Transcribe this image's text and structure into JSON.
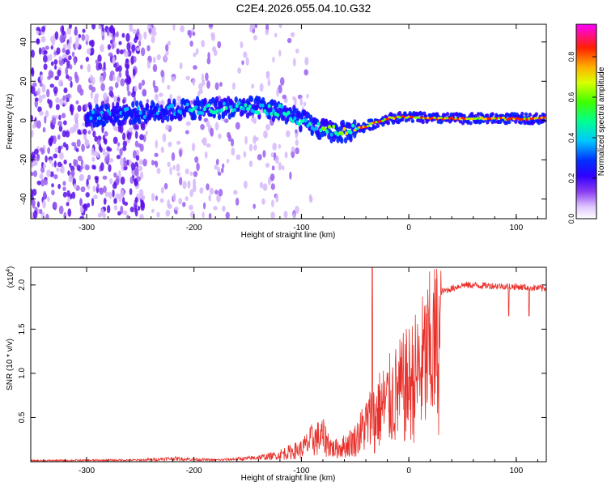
{
  "title": "C2E4.2026.055.04.10.G32",
  "colors": {
    "snr_line": "#e8302a",
    "axes": "#000000",
    "sparse_scatter": "#8a3cf0"
  },
  "chart_data": [
    {
      "type": "heatmap",
      "name": "spectrogram",
      "xlabel": "Height of straight line (km)",
      "ylabel": "Frequency (Hz)",
      "xlim": [
        -352,
        128
      ],
      "ylim": [
        -50,
        49
      ],
      "xticks": [
        -300,
        -200,
        -100,
        0,
        100
      ],
      "yticks": [
        -40,
        -20,
        0,
        20,
        40
      ],
      "colorbar": {
        "label": "Normalized spectral amplitude",
        "range": [
          0,
          0.96
        ],
        "ticks": [
          0.0,
          0.2,
          0.4,
          0.6,
          0.8
        ],
        "colormap": [
          "#ffffff",
          "#d0a0ff",
          "#5a00ff",
          "#0000ff",
          "#00ffff",
          "#00ff00",
          "#ffff00",
          "#ff8000",
          "#ff0000",
          "#ff00ff"
        ]
      },
      "signal_track": {
        "description_points": [
          {
            "x": -300,
            "freq": 2,
            "amp": 0.35
          },
          {
            "x": -250,
            "freq": 4,
            "amp": 0.35
          },
          {
            "x": -200,
            "freq": 6,
            "amp": 0.45
          },
          {
            "x": -150,
            "freq": 7,
            "amp": 0.5
          },
          {
            "x": -120,
            "freq": 5,
            "amp": 0.5
          },
          {
            "x": -100,
            "freq": 0,
            "amp": 0.5
          },
          {
            "x": -80,
            "freq": -5,
            "amp": 0.55
          },
          {
            "x": -60,
            "freq": -6,
            "amp": 0.7
          },
          {
            "x": -40,
            "freq": -3,
            "amp": 0.85
          },
          {
            "x": -20,
            "freq": 1,
            "amp": 0.9
          },
          {
            "x": 0,
            "freq": 2,
            "amp": 0.9
          },
          {
            "x": 20,
            "freq": 1,
            "amp": 0.95
          },
          {
            "x": 60,
            "freq": 1,
            "amp": 0.95
          },
          {
            "x": 100,
            "freq": 1,
            "amp": 0.95
          },
          {
            "x": 128,
            "freq": 1,
            "amp": 0.95
          }
        ],
        "noise_region_x": [
          -352,
          -120
        ]
      }
    },
    {
      "type": "line",
      "name": "snr",
      "xlabel": "Height of straight line (km)",
      "ylabel": "SNR (10 * v/v)",
      "multiplier_label": "(x10",
      "multiplier_exp": "4",
      "multiplier_close": ")",
      "xlim": [
        -352,
        128
      ],
      "ylim": [
        0,
        2.2
      ],
      "xticks": [
        -300,
        -200,
        -100,
        0,
        100
      ],
      "yticks": [
        0.5,
        1.0,
        1.5,
        2.0
      ],
      "ytick_labels": [
        "0.5",
        "1.0",
        "1.5",
        "2.0"
      ],
      "envelope": [
        {
          "x": -352,
          "y": 0.02
        },
        {
          "x": -250,
          "y": 0.03
        },
        {
          "x": -220,
          "y": 0.06
        },
        {
          "x": -180,
          "y": 0.03
        },
        {
          "x": -150,
          "y": 0.06
        },
        {
          "x": -120,
          "y": 0.12
        },
        {
          "x": -100,
          "y": 0.2
        },
        {
          "x": -90,
          "y": 0.35
        },
        {
          "x": -80,
          "y": 0.4
        },
        {
          "x": -70,
          "y": 0.2
        },
        {
          "x": -60,
          "y": 0.25
        },
        {
          "x": -50,
          "y": 0.35
        },
        {
          "x": -40,
          "y": 0.6
        },
        {
          "x": -30,
          "y": 0.8
        },
        {
          "x": -20,
          "y": 0.95
        },
        {
          "x": -10,
          "y": 1.1
        },
        {
          "x": 0,
          "y": 1.25
        },
        {
          "x": 10,
          "y": 1.45
        },
        {
          "x": 20,
          "y": 1.75
        },
        {
          "x": 30,
          "y": 1.92
        },
        {
          "x": 50,
          "y": 2.0
        },
        {
          "x": 80,
          "y": 1.99
        },
        {
          "x": 100,
          "y": 1.98
        },
        {
          "x": 128,
          "y": 1.96
        }
      ],
      "spikes": [
        {
          "x": -34,
          "y": 2.2
        },
        {
          "x": -32,
          "y": 0.1
        },
        {
          "x": 93,
          "y": 1.65
        },
        {
          "x": 112,
          "y": 1.65
        }
      ]
    }
  ]
}
